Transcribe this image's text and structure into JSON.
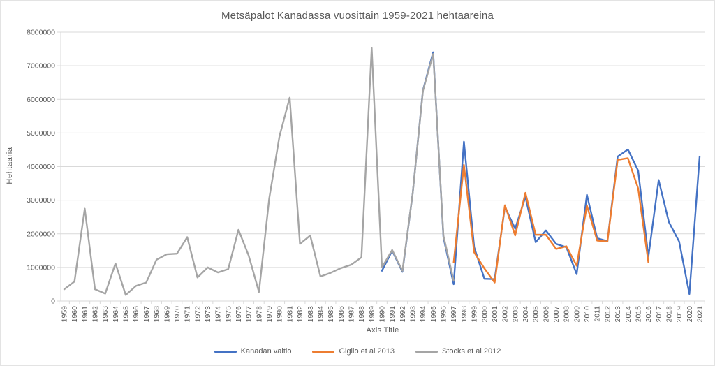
{
  "chart_data": {
    "type": "line",
    "title": "Metsäpalot Kanadassa vuosittain 1959-2021 hehtaareina",
    "xlabel": "Axis Title",
    "ylabel": "Hehtaaria",
    "ylim": [
      0,
      8000000
    ],
    "y_tick_step": 1000000,
    "grid": true,
    "legend_position": "bottom",
    "colors": {
      "axis": "#D9D9D9",
      "grid": "#D9D9D9",
      "text": "#595959"
    },
    "categories": [
      1959,
      1960,
      1961,
      1962,
      1963,
      1964,
      1965,
      1966,
      1967,
      1968,
      1969,
      1970,
      1971,
      1972,
      1973,
      1974,
      1975,
      1976,
      1977,
      1978,
      1979,
      1980,
      1981,
      1982,
      1983,
      1984,
      1985,
      1986,
      1987,
      1988,
      1989,
      1990,
      1991,
      1992,
      1993,
      1994,
      1995,
      1996,
      1997,
      1998,
      1999,
      2000,
      2001,
      2002,
      2003,
      2004,
      2005,
      2006,
      2007,
      2008,
      2009,
      2010,
      2011,
      2012,
      2013,
      2014,
      2015,
      2016,
      2017,
      2018,
      2019,
      2020,
      2021
    ],
    "series": [
      {
        "name": "Kanadan valtio",
        "color": "#4472C4",
        "values": [
          null,
          null,
          null,
          null,
          null,
          null,
          null,
          null,
          null,
          null,
          null,
          null,
          null,
          null,
          null,
          null,
          null,
          null,
          null,
          null,
          null,
          null,
          null,
          null,
          null,
          null,
          null,
          null,
          null,
          null,
          null,
          900000,
          1500000,
          870000,
          3200000,
          6270000,
          7400000,
          1900000,
          500000,
          4740000,
          1600000,
          660000,
          650000,
          2800000,
          2150000,
          3100000,
          1750000,
          2100000,
          1700000,
          1600000,
          800000,
          3160000,
          1870000,
          1780000,
          4300000,
          4510000,
          3880000,
          1320000,
          3600000,
          2350000,
          1770000,
          210000,
          4300000
        ]
      },
      {
        "name": "Giglio et al 2013",
        "color": "#ED7D31",
        "values": [
          null,
          null,
          null,
          null,
          null,
          null,
          null,
          null,
          null,
          null,
          null,
          null,
          null,
          null,
          null,
          null,
          null,
          null,
          null,
          null,
          null,
          null,
          null,
          null,
          null,
          null,
          null,
          null,
          null,
          null,
          null,
          null,
          null,
          null,
          null,
          null,
          null,
          null,
          1150000,
          4050000,
          1450000,
          970000,
          550000,
          2850000,
          1950000,
          3220000,
          1970000,
          1970000,
          1550000,
          1630000,
          1050000,
          2840000,
          1800000,
          1770000,
          4200000,
          4250000,
          3350000,
          1150000,
          null,
          null,
          null,
          null,
          null
        ]
      },
      {
        "name": "Stocks et al 2012",
        "color": "#A5A5A5",
        "values": [
          350000,
          580000,
          2750000,
          350000,
          220000,
          1120000,
          180000,
          450000,
          550000,
          1230000,
          1390000,
          1410000,
          1900000,
          700000,
          1000000,
          850000,
          950000,
          2120000,
          1350000,
          270000,
          3050000,
          4900000,
          6050000,
          1700000,
          1950000,
          730000,
          840000,
          980000,
          1080000,
          1300000,
          7530000,
          1000000,
          1520000,
          900000,
          3200000,
          6250000,
          7350000,
          1950000,
          600000,
          null,
          null,
          null,
          null,
          null,
          null,
          null,
          null,
          null,
          null,
          null,
          null,
          null,
          null,
          null,
          null,
          null,
          null,
          null,
          null,
          null,
          null,
          null,
          null
        ]
      }
    ]
  }
}
